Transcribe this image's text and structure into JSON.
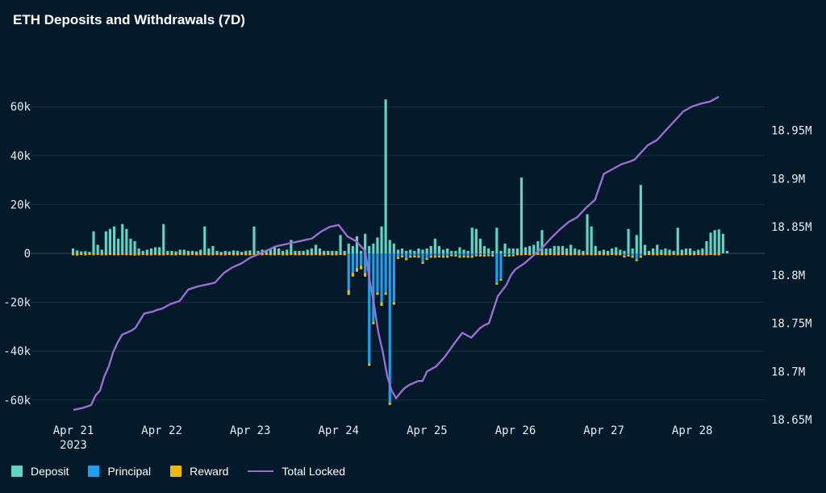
{
  "title": "ETH Deposits and Withdrawals (7D)",
  "colors": {
    "background": "#04192a",
    "deposit": "#5cd6c5",
    "principal": "#1fa0ef",
    "reward": "#f0b90b",
    "total_locked": "#9b6dd0",
    "grid": "#1b3042"
  },
  "legend": {
    "deposit": "Deposit",
    "principal": "Principal",
    "reward": "Reward",
    "total_locked": "Total Locked"
  },
  "chart_data": {
    "type": "bar",
    "title": "ETH Deposits and Withdrawals (7D)",
    "x_ticks": [
      "Apr 21",
      "Apr 22",
      "Apr 23",
      "Apr 24",
      "Apr 25",
      "Apr 26",
      "Apr 27",
      "Apr 28"
    ],
    "x_ticks_year": "2023",
    "x_range_days": [
      -0.25,
      7.3
    ],
    "y_left": {
      "ticks": [
        "60k",
        "40k",
        "20k",
        "0",
        "-20k",
        "-40k",
        "-60k"
      ],
      "tick_values": [
        60000,
        40000,
        20000,
        0,
        -20000,
        -40000,
        -60000
      ],
      "range": [
        -68000,
        68000
      ]
    },
    "y_right": {
      "ticks": [
        "18.95M",
        "18.9M",
        "18.85M",
        "18.8M",
        "18.75M",
        "18.7M",
        "18.65M"
      ],
      "tick_values": [
        18950000,
        18900000,
        18850000,
        18800000,
        18750000,
        18700000,
        18650000
      ],
      "range": [
        18650000,
        18995000
      ]
    },
    "legend_position": "bottom-left",
    "grid": true,
    "series": [
      {
        "name": "Deposit",
        "type": "bar",
        "values": [
          2000,
          1200,
          800,
          900,
          600,
          9000,
          3500,
          1500,
          9000,
          10000,
          11000,
          6000,
          12000,
          10000,
          6000,
          5000,
          2000,
          1000,
          1500,
          2000,
          2500,
          2500,
          12000,
          1000,
          1000,
          800,
          1500,
          1500,
          1000,
          1000,
          800,
          1500,
          11000,
          2000,
          3000,
          1000,
          600,
          1000,
          800,
          1200,
          1000,
          600,
          1000,
          1200,
          11000,
          1000,
          1500,
          1000,
          2000,
          3000,
          2000,
          1000,
          1500,
          5500,
          1000,
          1000,
          1000,
          1500,
          2000,
          3500,
          2000,
          1000,
          1000,
          1000,
          1000,
          7500,
          1000,
          4000,
          3000,
          7000,
          1000,
          8000,
          3000,
          4000,
          6500,
          11000,
          63000,
          5500,
          4000,
          1500,
          2000,
          1000,
          1500,
          1000,
          2000,
          1500,
          2000,
          3000,
          6000,
          3000,
          1500,
          2000,
          1000,
          1000,
          2500,
          1500,
          1000,
          10500,
          10000,
          6000,
          3000,
          2000,
          1000,
          10500,
          1000,
          4000,
          2000,
          2000,
          2000,
          31000,
          2500,
          3000,
          3500,
          5000,
          9500,
          2000,
          2000,
          3000,
          3000,
          3000,
          2000,
          3500,
          2000,
          1500,
          1000,
          16000,
          11000,
          3000,
          1000,
          1500,
          1000,
          2000,
          2500,
          1500,
          1000,
          10000,
          2000,
          7500,
          28000,
          3500,
          1000,
          2000,
          3500,
          1500,
          2000,
          1500,
          1000,
          10500,
          1500,
          2000,
          2000,
          1000,
          1500,
          2000,
          5000,
          8500,
          9500,
          9800,
          8000,
          1000
        ]
      },
      {
        "name": "Principal",
        "type": "bar",
        "values": [
          0,
          0,
          0,
          0,
          0,
          0,
          0,
          0,
          0,
          0,
          0,
          0,
          0,
          0,
          0,
          0,
          0,
          0,
          0,
          0,
          0,
          0,
          0,
          0,
          0,
          0,
          0,
          0,
          0,
          0,
          0,
          0,
          0,
          0,
          0,
          0,
          0,
          0,
          0,
          0,
          0,
          0,
          0,
          0,
          0,
          0,
          0,
          0,
          0,
          0,
          0,
          0,
          0,
          0,
          0,
          0,
          0,
          0,
          0,
          0,
          0,
          0,
          0,
          0,
          0,
          0,
          0,
          -15000,
          -8000,
          -6000,
          -5000,
          -8000,
          -45000,
          -28000,
          -16000,
          -20000,
          -16000,
          -61000,
          -20000,
          -1500,
          -1000,
          -2000,
          -1000,
          -1000,
          -1000,
          -3500,
          -2000,
          -1000,
          -1000,
          -1000,
          -1000,
          -1000,
          -500,
          -500,
          -1000,
          -1000,
          -1000,
          -1000,
          -500,
          -500,
          -500,
          -500,
          -500,
          -12000,
          -10500,
          -500,
          -500,
          -500,
          0,
          0,
          0,
          0,
          0,
          0,
          0,
          0,
          0,
          0,
          0,
          0,
          0,
          0,
          0,
          0,
          0,
          0,
          0,
          0,
          0,
          0,
          0,
          0,
          0,
          0,
          -1000,
          -500,
          -1000,
          -2500,
          -1000,
          0,
          0,
          0,
          0,
          0,
          0,
          0,
          0,
          0,
          0,
          0,
          0,
          0,
          0,
          0,
          0,
          0,
          0,
          0,
          0,
          0
        ]
      },
      {
        "name": "Reward",
        "type": "bar",
        "values": [
          -800,
          -900,
          -700,
          -800,
          -700,
          -800,
          -700,
          -800,
          -800,
          -700,
          -800,
          -800,
          -700,
          -800,
          -800,
          -900,
          -800,
          -700,
          -800,
          -800,
          -700,
          -800,
          -800,
          -700,
          -800,
          -800,
          -700,
          -800,
          -800,
          -700,
          -800,
          -800,
          -700,
          -800,
          -800,
          -700,
          -800,
          -800,
          -700,
          -800,
          -800,
          -700,
          -800,
          -800,
          -700,
          -800,
          -800,
          -700,
          -800,
          -800,
          -700,
          -800,
          -800,
          -700,
          -800,
          -800,
          -700,
          -800,
          -800,
          -700,
          -800,
          -800,
          -700,
          -800,
          -800,
          -700,
          -800,
          -2000,
          -1500,
          -1500,
          -1500,
          -1500,
          -1000,
          -1000,
          -1000,
          -1500,
          -1000,
          -1000,
          -1000,
          -800,
          -700,
          -800,
          -800,
          -700,
          -800,
          -800,
          -700,
          -800,
          -800,
          -700,
          -800,
          -800,
          -700,
          -800,
          -800,
          -700,
          -800,
          -800,
          -700,
          -800,
          -800,
          -700,
          -800,
          -800,
          -700,
          -800,
          -800,
          -700,
          -800,
          -800,
          -700,
          -800,
          -800,
          -700,
          -800,
          -800,
          -700,
          -800,
          -800,
          -700,
          -800,
          -800,
          -700,
          -800,
          -800,
          -700,
          -800,
          -800,
          -700,
          -800,
          -800,
          -700,
          -800,
          -800,
          -700,
          -800,
          -800,
          -700,
          -800,
          -800,
          -700,
          -800,
          -800,
          -700,
          -800,
          -800,
          -700,
          -800,
          -800,
          -700,
          -800,
          -800,
          -700,
          -800,
          -800,
          -700,
          -800,
          -800
        ]
      },
      {
        "name": "Total Locked",
        "type": "line",
        "x_days": [
          0,
          0.1,
          0.2,
          0.25,
          0.3,
          0.35,
          0.4,
          0.45,
          0.5,
          0.55,
          0.6,
          0.65,
          0.7,
          0.8,
          0.9,
          0.95,
          1.0,
          1.1,
          1.2,
          1.3,
          1.4,
          1.45,
          1.5,
          1.6,
          1.7,
          1.8,
          1.9,
          1.95,
          2.0,
          2.1,
          2.2,
          2.3,
          2.4,
          2.5,
          2.6,
          2.7,
          2.8,
          2.9,
          3.0,
          3.1,
          3.2,
          3.3,
          3.35,
          3.4,
          3.45,
          3.5,
          3.55,
          3.6,
          3.65,
          3.7,
          3.75,
          3.8,
          3.85,
          3.9,
          3.95,
          4.0,
          4.1,
          4.2,
          4.3,
          4.4,
          4.5,
          4.6,
          4.65,
          4.7,
          4.8,
          4.9,
          4.95,
          5.0,
          5.1,
          5.2,
          5.3,
          5.4,
          5.5,
          5.6,
          5.7,
          5.8,
          5.9,
          6.0,
          6.1,
          6.2,
          6.3,
          6.35,
          6.4,
          6.5,
          6.6,
          6.7,
          6.8,
          6.9,
          7.0,
          7.1,
          7.2,
          7.3
        ],
        "values": [
          18660000,
          18662000,
          18665000,
          18675000,
          18680000,
          18695000,
          18705000,
          18720000,
          18730000,
          18738000,
          18740000,
          18742000,
          18745000,
          18760000,
          18762000,
          18764000,
          18765000,
          18770000,
          18773000,
          18785000,
          18788000,
          18789000,
          18790000,
          18792000,
          18802000,
          18808000,
          18812000,
          18815000,
          18818000,
          18822000,
          18826000,
          18830000,
          18832000,
          18834000,
          18836000,
          18838000,
          18845000,
          18850000,
          18852000,
          18840000,
          18835000,
          18825000,
          18795000,
          18770000,
          18740000,
          18720000,
          18695000,
          18680000,
          18672000,
          18678000,
          18683000,
          18686000,
          18688000,
          18690000,
          18690000,
          18700000,
          18705000,
          18715000,
          18728000,
          18740000,
          18735000,
          18745000,
          18748000,
          18750000,
          18778000,
          18790000,
          18800000,
          18806000,
          18812000,
          18820000,
          18828000,
          18838000,
          18847000,
          18855000,
          18860000,
          18870000,
          18878000,
          18905000,
          18910000,
          18915000,
          18918000,
          18920000,
          18925000,
          18935000,
          18940000,
          18950000,
          18960000,
          18970000,
          18975000,
          18978000,
          18980000,
          18985000
        ]
      }
    ]
  }
}
